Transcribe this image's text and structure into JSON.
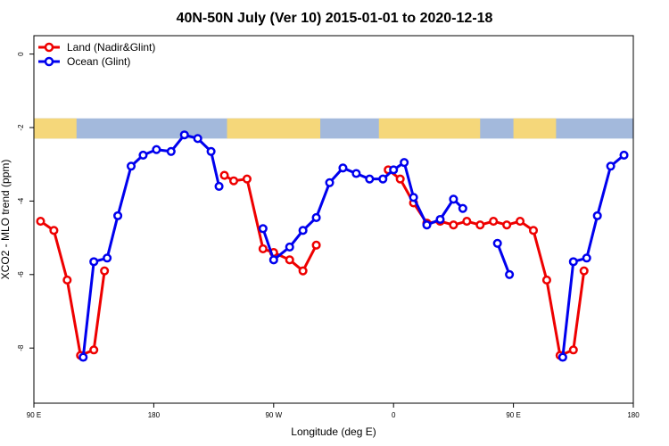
{
  "chart_data": {
    "type": "line",
    "title": "40N-50N July (Ver 10)   2015-01-01 to 2020-12-18",
    "xlabel": "Longitude (deg E)",
    "ylabel": "XCO2 - MLO trend (ppm)",
    "xlim": [
      90,
      540
    ],
    "ylim": [
      -9.5,
      0.5
    ],
    "x_ticks": [
      {
        "value": 90,
        "label": "90 E"
      },
      {
        "value": 180,
        "label": "180"
      },
      {
        "value": 270,
        "label": "90 W"
      },
      {
        "value": 360,
        "label": "0"
      },
      {
        "value": 450,
        "label": "90 E"
      },
      {
        "value": 540,
        "label": "180"
      }
    ],
    "y_ticks": [
      {
        "value": 0,
        "label": "0"
      },
      {
        "value": -2,
        "label": "-2"
      },
      {
        "value": -4,
        "label": "-4"
      },
      {
        "value": -6,
        "label": "-6"
      },
      {
        "value": -8,
        "label": "-8"
      }
    ],
    "grid": false,
    "legend_position": "top-left",
    "map_strip_yrange": [
      -2.3,
      -1.75
    ],
    "map_colors": {
      "ocean": "#a3b9dc",
      "land": "#f5d77a"
    },
    "series": [
      {
        "name": "Land (Nadir&Glint)",
        "color": "#ee0000",
        "segments": [
          [
            [
              95,
              -4.55
            ],
            [
              105,
              -4.8
            ],
            [
              115,
              -6.15
            ],
            [
              125,
              -8.2
            ],
            [
              135,
              -8.05
            ],
            [
              143,
              -5.9
            ]
          ],
          [
            [
              233,
              -3.3
            ],
            [
              240,
              -3.45
            ],
            [
              250,
              -3.4
            ],
            [
              262,
              -5.3
            ],
            [
              270,
              -5.4
            ],
            [
              282,
              -5.6
            ],
            [
              292,
              -5.9
            ],
            [
              302,
              -5.2
            ]
          ],
          [
            [
              356,
              -3.15
            ],
            [
              365,
              -3.4
            ],
            [
              375,
              -4.05
            ],
            [
              385,
              -4.6
            ],
            [
              395,
              -4.55
            ],
            [
              405,
              -4.65
            ],
            [
              415,
              -4.55
            ],
            [
              425,
              -4.65
            ],
            [
              435,
              -4.55
            ],
            [
              445,
              -4.65
            ],
            [
              455,
              -4.55
            ],
            [
              465,
              -4.8
            ],
            [
              475,
              -6.15
            ],
            [
              485,
              -8.2
            ],
            [
              495,
              -8.05
            ],
            [
              503,
              -5.9
            ]
          ]
        ]
      },
      {
        "name": "Ocean (Glint)",
        "color": "#0000ee",
        "segments": [
          [
            [
              127,
              -8.25
            ],
            [
              135,
              -5.65
            ],
            [
              145,
              -5.55
            ],
            [
              153,
              -4.4
            ],
            [
              163,
              -3.05
            ],
            [
              172,
              -2.75
            ],
            [
              182,
              -2.6
            ],
            [
              193,
              -2.65
            ],
            [
              203,
              -2.2
            ],
            [
              213,
              -2.3
            ],
            [
              223,
              -2.65
            ],
            [
              229,
              -3.6
            ]
          ],
          [
            [
              262,
              -4.75
            ],
            [
              270,
              -5.6
            ],
            [
              282,
              -5.25
            ],
            [
              292,
              -4.8
            ],
            [
              302,
              -4.45
            ],
            [
              312,
              -3.5
            ],
            [
              322,
              -3.1
            ],
            [
              332,
              -3.25
            ],
            [
              342,
              -3.4
            ],
            [
              352,
              -3.4
            ],
            [
              360,
              -3.15
            ],
            [
              368,
              -2.95
            ],
            [
              375,
              -3.9
            ],
            [
              385,
              -4.65
            ],
            [
              395,
              -4.5
            ],
            [
              405,
              -3.95
            ],
            [
              412,
              -4.2
            ]
          ],
          [
            [
              438,
              -5.15
            ],
            [
              447,
              -6.0
            ]
          ],
          [
            [
              487,
              -8.25
            ],
            [
              495,
              -5.65
            ],
            [
              505,
              -5.55
            ],
            [
              513,
              -4.4
            ],
            [
              523,
              -3.05
            ],
            [
              533,
              -2.75
            ]
          ]
        ]
      }
    ]
  }
}
